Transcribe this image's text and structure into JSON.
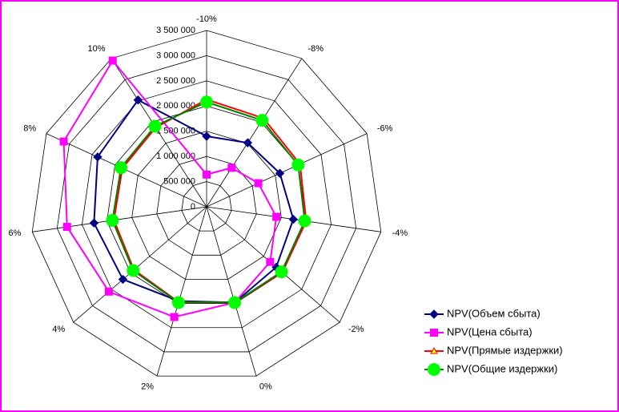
{
  "chart_data": {
    "type": "radar",
    "categories": [
      "-10%",
      "-8%",
      "-6%",
      "-4%",
      "-2%",
      "0%",
      "2%",
      "4%",
      "6%",
      "8%",
      "10%"
    ],
    "ylim": [
      0,
      3500000
    ],
    "yticks": [
      0,
      {
        "value": 500000,
        "label": "500 000"
      },
      {
        "value": 1000000,
        "label": "1 000 000"
      },
      {
        "value": 1500000,
        "label": "1 500 000"
      },
      {
        "value": 2000000,
        "label": "2 000 000"
      },
      {
        "value": 2500000,
        "label": "2 500 000"
      },
      {
        "value": 3000000,
        "label": "3 000 000"
      },
      {
        "value": 3500000,
        "label": "3 500 000"
      }
    ],
    "grid": true,
    "legend": "bottom-right",
    "series": [
      {
        "name": "NPV(Объем сбыта)",
        "color": "#000080",
        "marker": "diamond",
        "marker_color": "#000080",
        "values": [
          1400000,
          1510000,
          1600000,
          1740000,
          1830000,
          1980000,
          1950000,
          2200000,
          2260000,
          2380000,
          2520000
        ]
      },
      {
        "name": "NPV(Цена сбыта)",
        "color": "#ff00ff",
        "marker": "square",
        "marker_color": "#ff00ff",
        "values": [
          640000,
          920000,
          1130000,
          1400000,
          1670000,
          1980000,
          2280000,
          2570000,
          2800000,
          3120000,
          3450000
        ]
      },
      {
        "name": "NPV(Прямые издержки)",
        "color": "#ff0000",
        "marker": "triangle",
        "marker_color": "#ffff00",
        "values": [
          2130000,
          2090000,
          2040000,
          2000000,
          1990000,
          1980000,
          1970000,
          1910000,
          1860000,
          1840000,
          1870000
        ]
      },
      {
        "name": "NPV(Общие издержки)",
        "color": "#008000",
        "marker": "circle",
        "marker_color": "#00ff00",
        "values": [
          2080000,
          2040000,
          2000000,
          1970000,
          1970000,
          1980000,
          1980000,
          1930000,
          1890000,
          1870000,
          1900000
        ]
      }
    ]
  }
}
